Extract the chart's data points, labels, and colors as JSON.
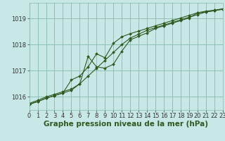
{
  "background_color": "#c8e8e8",
  "grid_color": "#88bbaa",
  "line_color": "#2d5a1e",
  "xlabel": "Graphe pression niveau de la mer (hPa)",
  "xlabel_fontsize": 7.5,
  "tick_fontsize": 6,
  "ylim": [
    1015.5,
    1019.6
  ],
  "xlim": [
    0,
    23
  ],
  "yticks": [
    1016,
    1017,
    1018,
    1019
  ],
  "xticks": [
    0,
    1,
    2,
    3,
    4,
    5,
    6,
    7,
    8,
    9,
    10,
    11,
    12,
    13,
    14,
    15,
    16,
    17,
    18,
    19,
    20,
    21,
    22,
    23
  ],
  "line1_x": [
    0,
    1,
    2,
    3,
    4,
    5,
    6,
    7,
    8,
    9,
    10,
    11,
    12,
    13,
    14,
    15,
    16,
    17,
    18,
    19,
    20,
    21,
    22,
    23
  ],
  "line1_y": [
    1015.75,
    1015.87,
    1016.0,
    1016.1,
    1016.2,
    1016.3,
    1016.5,
    1016.8,
    1017.1,
    1017.4,
    1017.7,
    1018.0,
    1018.25,
    1018.4,
    1018.55,
    1018.65,
    1018.75,
    1018.85,
    1018.95,
    1019.05,
    1019.15,
    1019.25,
    1019.3,
    1019.35
  ],
  "line2_x": [
    0,
    1,
    2,
    3,
    4,
    5,
    6,
    7,
    8,
    9,
    10,
    11,
    12,
    13,
    14,
    15,
    16,
    17,
    18,
    19,
    20,
    21,
    22,
    23
  ],
  "line2_y": [
    1015.72,
    1015.82,
    1015.95,
    1016.05,
    1016.15,
    1016.65,
    1016.8,
    1017.15,
    1017.65,
    1017.5,
    1018.05,
    1018.3,
    1018.42,
    1018.52,
    1018.62,
    1018.72,
    1018.82,
    1018.92,
    1019.02,
    1019.12,
    1019.22,
    1019.28,
    1019.32,
    1019.37
  ],
  "line3_x": [
    0,
    1,
    2,
    3,
    4,
    5,
    6,
    7,
    8,
    9,
    10,
    11,
    12,
    13,
    14,
    15,
    16,
    17,
    18,
    19,
    20,
    21,
    22,
    23
  ],
  "line3_y": [
    1015.72,
    1015.82,
    1015.95,
    1016.05,
    1016.15,
    1016.25,
    1016.5,
    1017.55,
    1017.15,
    1017.1,
    1017.25,
    1017.75,
    1018.18,
    1018.32,
    1018.45,
    1018.62,
    1018.72,
    1018.82,
    1018.92,
    1019.02,
    1019.22,
    1019.25,
    1019.3,
    1019.37
  ]
}
